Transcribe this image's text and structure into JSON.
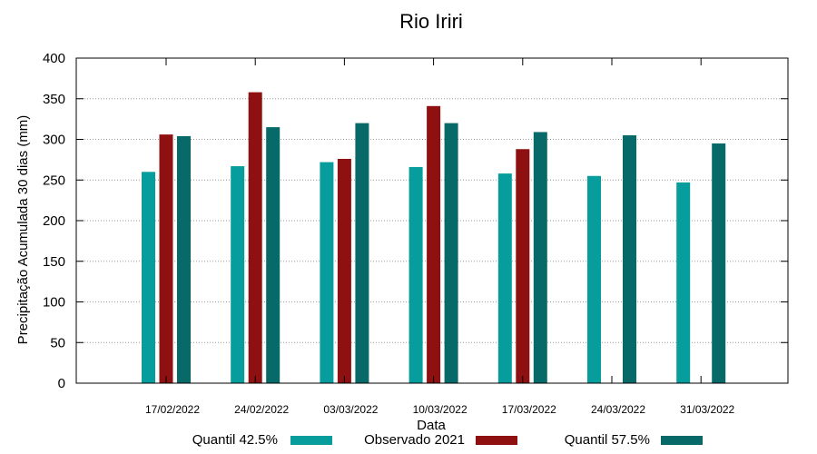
{
  "chart_data": {
    "type": "bar",
    "title": "Rio Iriri",
    "xlabel": "Data",
    "ylabel": "Precipitação Acumulada 30 dias (mm)",
    "ylim": [
      0,
      400
    ],
    "yticks": [
      0,
      50,
      100,
      150,
      200,
      250,
      300,
      350,
      400
    ],
    "grid": true,
    "legend_position": "bottom",
    "categories": [
      "17/02/2022",
      "24/02/2022",
      "03/03/2022",
      "10/03/2022",
      "17/03/2022",
      "24/03/2022",
      "31/03/2022"
    ],
    "series": [
      {
        "name": "Quantil 42.5%",
        "color": "#069d9c",
        "values": [
          260,
          267,
          272,
          266,
          258,
          255,
          247
        ]
      },
      {
        "name": "Observado 2021",
        "color": "#8e1010",
        "values": [
          306,
          358,
          276,
          341,
          288,
          null,
          null
        ]
      },
      {
        "name": "Quantil 57.5%",
        "color": "#076a68",
        "values": [
          304,
          315,
          320,
          320,
          309,
          305,
          295
        ]
      }
    ]
  }
}
